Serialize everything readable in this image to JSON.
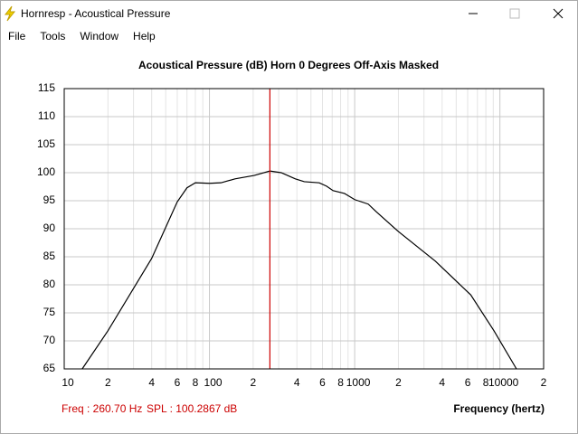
{
  "window": {
    "title": "Hornresp - Acoustical Pressure",
    "menu": [
      "File",
      "Tools",
      "Window",
      "Help"
    ]
  },
  "chart_data": {
    "type": "line",
    "title": "Acoustical Pressure (dB)   Horn   0 Degrees Off-Axis   Masked",
    "x_label": "Frequency (hertz)",
    "log_x": true,
    "grid": true,
    "xlim": [
      10,
      20000
    ],
    "ylim": [
      65,
      115
    ],
    "xticks": [
      10,
      {
        "value": 20,
        "label": "2"
      },
      {
        "value": 40,
        "label": "4"
      },
      {
        "value": 60,
        "label": "6"
      },
      {
        "value": 80,
        "label": "8"
      },
      100,
      {
        "value": 200,
        "label": "2"
      },
      {
        "value": 400,
        "label": "4"
      },
      {
        "value": 600,
        "label": "6"
      },
      {
        "value": 800,
        "label": "8"
      },
      1000,
      {
        "value": 2000,
        "label": "2"
      },
      {
        "value": 4000,
        "label": "4"
      },
      {
        "value": 6000,
        "label": "6"
      },
      {
        "value": 8000,
        "label": "8"
      },
      10000,
      {
        "value": 20000,
        "label": "2"
      }
    ],
    "xminor": [
      30,
      50,
      70,
      90,
      300,
      500,
      700,
      900,
      3000,
      5000,
      7000,
      9000
    ],
    "yticks": [
      65,
      70,
      75,
      80,
      85,
      90,
      95,
      100,
      105,
      110,
      115
    ],
    "x": [
      13.3,
      20,
      40,
      60,
      70,
      80,
      100,
      120,
      150,
      203,
      260.7,
      312,
      390,
      450,
      570,
      640,
      710,
      850,
      1000,
      1240,
      1400,
      2000,
      3600,
      6300,
      9100,
      13000
    ],
    "series": [
      {
        "color": "#000000",
        "values": [
          65,
          71.8,
          84.7,
          94.8,
          97.3,
          98.2,
          98.1,
          98.2,
          98.9,
          99.5,
          100.3,
          100.0,
          98.9,
          98.4,
          98.2,
          97.6,
          96.8,
          96.3,
          95.2,
          94.4,
          93.1,
          89.5,
          84.2,
          78.2,
          71.8,
          65
        ]
      }
    ],
    "marker": {
      "x": 260.7,
      "color": "#cc0000",
      "freq_label": "Freq : 260.70 Hz",
      "spl_label": "SPL : 100.2867 dB"
    }
  }
}
